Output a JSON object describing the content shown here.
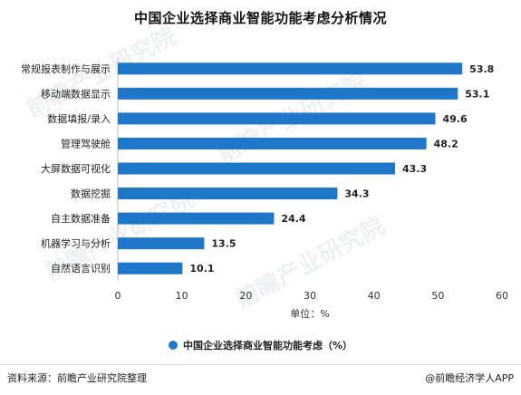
{
  "chart_data": {
    "type": "bar",
    "orientation": "horizontal",
    "title": "中国企业选择商业智能功能考虑分析情况",
    "categories": [
      "常规报表制作与展示",
      "移动端数据显示",
      "数据填报/录入",
      "管理驾驶舱",
      "大屏数据可视化",
      "数据挖掘",
      "自主数据准备",
      "机器学习与分析",
      "自然语言识别"
    ],
    "series": [
      {
        "name": "中国企业选择商业智能功能考虑（%）",
        "values": [
          53.8,
          53.1,
          49.6,
          48.2,
          43.3,
          34.3,
          24.4,
          13.5,
          10.1
        ]
      }
    ],
    "xlabel": "单位：%",
    "xlim": [
      0,
      60
    ],
    "xticks": [
      0,
      10,
      20,
      30,
      40,
      50,
      60
    ],
    "grid": false,
    "legend_position": "bottom",
    "bar_color": "#1f77c9"
  },
  "footer": {
    "source": "资料来源：前瞻产业研究院整理",
    "brand": "@前瞻经济学人APP"
  }
}
